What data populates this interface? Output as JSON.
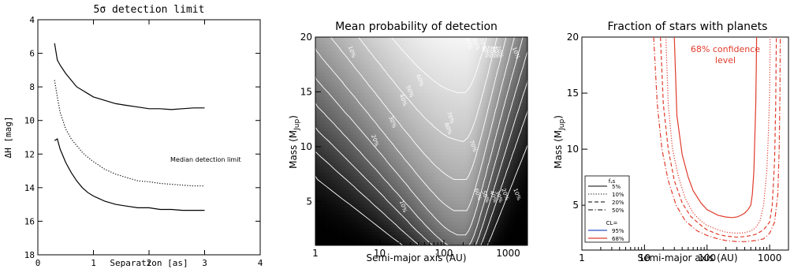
{
  "colors": {
    "red": "#e03c2c",
    "blue": "#3050c0",
    "black": "#000000"
  },
  "chart_data": [
    {
      "type": "line",
      "title": "5σ detection limit",
      "xlabel": "Separation [as]",
      "ylabel": "ΔH [mag]",
      "xlim": [
        0,
        4
      ],
      "ylim": [
        18,
        4
      ],
      "y_inverted": true,
      "xticks": [
        "0",
        "1",
        "2",
        "3",
        "4"
      ],
      "yticks": [
        "4",
        "6",
        "8",
        "10",
        "12",
        "14",
        "16",
        "18"
      ],
      "annotation": "Median detection limit",
      "series": [
        {
          "style": "solid",
          "x": [
            0.3,
            0.35,
            0.4,
            0.5,
            0.6,
            0.7,
            0.8,
            0.9,
            1.0,
            1.2,
            1.4,
            1.6,
            1.8,
            2.0,
            2.2,
            2.4,
            2.6,
            2.8,
            3.0
          ],
          "y": [
            5.4,
            6.4,
            6.7,
            7.2,
            7.6,
            8.0,
            8.2,
            8.4,
            8.6,
            8.8,
            9.0,
            9.1,
            9.2,
            9.3,
            9.3,
            9.35,
            9.3,
            9.25,
            9.25
          ]
        },
        {
          "style": "dotted",
          "x": [
            0.3,
            0.35,
            0.4,
            0.5,
            0.6,
            0.7,
            0.8,
            0.9,
            1.0,
            1.2,
            1.4,
            1.6,
            1.8,
            2.0,
            2.2,
            2.4,
            2.6,
            2.8,
            3.0
          ],
          "y": [
            7.6,
            8.6,
            9.5,
            10.5,
            11.1,
            11.5,
            11.9,
            12.2,
            12.45,
            12.9,
            13.2,
            13.4,
            13.6,
            13.65,
            13.75,
            13.8,
            13.85,
            13.9,
            13.9
          ]
        },
        {
          "style": "solid",
          "x": [
            0.3,
            0.35,
            0.4,
            0.5,
            0.6,
            0.7,
            0.8,
            0.9,
            1.0,
            1.2,
            1.4,
            1.6,
            1.8,
            2.0,
            2.2,
            2.4,
            2.6,
            2.8,
            3.0
          ],
          "y": [
            11.2,
            11.1,
            11.7,
            12.5,
            13.1,
            13.6,
            14.0,
            14.3,
            14.5,
            14.8,
            15.0,
            15.1,
            15.2,
            15.2,
            15.3,
            15.3,
            15.35,
            15.35,
            15.35
          ]
        }
      ]
    },
    {
      "type": "heatmap",
      "title": "Mean probability of detection",
      "xlabel": "Semi-major axis (AU)",
      "ylabel": "Mass (M",
      "ylabel_sub": "Jup",
      "ylabel_end": ")",
      "x_scale": "log",
      "xlim": [
        1,
        2000
      ],
      "ylim": [
        1,
        20
      ],
      "xticks": [
        "1",
        "10",
        "100",
        "1000"
      ],
      "yticks": [
        "5",
        "10",
        "15",
        "20"
      ],
      "contour_levels": [
        10,
        20,
        30,
        40,
        50,
        60,
        70,
        80,
        90
      ],
      "contour_labels": [
        {
          "text": "10%",
          "x": 3.5,
          "y": 18.6
        },
        {
          "text": "20%",
          "x": 8,
          "y": 10.5
        },
        {
          "text": "30%",
          "x": 15,
          "y": 12.2
        },
        {
          "text": "40%",
          "x": 22,
          "y": 14.2
        },
        {
          "text": "50%",
          "x": 28,
          "y": 15.0
        },
        {
          "text": "60%",
          "x": 40,
          "y": 16.0
        },
        {
          "text": "70%",
          "x": 120,
          "y": 12.6
        },
        {
          "text": "70%",
          "x": 270,
          "y": 10.0
        },
        {
          "text": "80%",
          "x": 110,
          "y": 11.6
        },
        {
          "text": "90%",
          "x": 230,
          "y": 19.4
        },
        {
          "text": "80%",
          "x": 300,
          "y": 19.3
        },
        {
          "text": "70%",
          "x": 380,
          "y": 19.3
        },
        {
          "text": "60%",
          "x": 420,
          "y": 18.6
        },
        {
          "text": "50%",
          "x": 480,
          "y": 18.6
        },
        {
          "text": "40%",
          "x": 560,
          "y": 18.6
        },
        {
          "text": "30%",
          "x": 620,
          "y": 18.6
        },
        {
          "text": "20%",
          "x": 700,
          "y": 18.6
        },
        {
          "text": "10%",
          "x": 1250,
          "y": 18.5
        },
        {
          "text": "10%",
          "x": 22,
          "y": 4.5
        },
        {
          "text": "60%",
          "x": 320,
          "y": 5.6
        },
        {
          "text": "50%",
          "x": 420,
          "y": 5.4
        },
        {
          "text": "40%",
          "x": 560,
          "y": 5.4
        },
        {
          "text": "30%",
          "x": 680,
          "y": 5.4
        },
        {
          "text": "20%",
          "x": 850,
          "y": 5.6
        },
        {
          "text": "10%",
          "x": 1300,
          "y": 5.6
        }
      ]
    },
    {
      "type": "line",
      "title": "Fraction of stars with planets",
      "xlabel": "Semi-major axis (AU)",
      "ylabel": "Mass (M",
      "ylabel_sub": "Jup",
      "ylabel_end": ")",
      "x_scale": "log",
      "xlim": [
        1,
        2000
      ],
      "ylim": [
        1,
        20
      ],
      "xticks": [
        "1",
        "10",
        "100",
        "1000"
      ],
      "yticks": [
        "5",
        "10",
        "15",
        "20"
      ],
      "annotation_line1": "68% confidence",
      "annotation_line2": "level",
      "legend": {
        "title_f": "f",
        "title_sub": "*",
        "title_s": "s",
        "entries": [
          "5%",
          "10%",
          "20%",
          "50%"
        ],
        "cl_title": "CL=",
        "cl_entries": [
          "95%",
          "68%"
        ]
      },
      "series": [
        {
          "name": "5%",
          "style": "solid",
          "x": [
            30,
            33,
            40,
            50,
            60,
            80,
            100,
            150,
            200,
            250,
            300,
            350,
            400,
            450,
            500,
            530,
            560,
            580,
            600,
            610,
            620
          ],
          "y": [
            20,
            13,
            9.5,
            7.5,
            6.3,
            5.2,
            4.6,
            4.1,
            3.95,
            3.9,
            3.95,
            4.1,
            4.3,
            4.6,
            5.0,
            6.0,
            8.0,
            11,
            14,
            17,
            20
          ]
        },
        {
          "name": "10%",
          "style": "dotted",
          "x": [
            22,
            24,
            28,
            35,
            45,
            60,
            80,
            100,
            150,
            200,
            300,
            400,
            500,
            600,
            700,
            800,
            900,
            950,
            1000,
            1020
          ],
          "y": [
            20,
            14,
            10,
            7.5,
            5.6,
            4.3,
            3.6,
            3.2,
            2.8,
            2.6,
            2.5,
            2.55,
            2.7,
            3.0,
            3.6,
            5.0,
            8.0,
            11,
            15,
            20
          ]
        },
        {
          "name": "20%",
          "style": "dashed",
          "x": [
            18,
            20,
            24,
            30,
            40,
            55,
            80,
            100,
            150,
            200,
            300,
            400,
            500,
            600,
            800,
            1000,
            1100,
            1200,
            1250,
            1280
          ],
          "y": [
            20,
            14,
            10,
            7.2,
            5.2,
            4.0,
            3.2,
            2.8,
            2.4,
            2.25,
            2.15,
            2.2,
            2.3,
            2.4,
            2.8,
            3.5,
            5.0,
            9.0,
            14,
            20
          ]
        },
        {
          "name": "50%",
          "style": "dashdot",
          "x": [
            14,
            16,
            19,
            24,
            32,
            45,
            70,
            100,
            150,
            200,
            300,
            400,
            600,
            800,
            1000,
            1200,
            1350,
            1420,
            1460,
            1480
          ],
          "y": [
            20,
            14,
            10,
            7.2,
            5.0,
            3.6,
            2.7,
            2.3,
            2.0,
            1.85,
            1.75,
            1.75,
            1.85,
            2.0,
            2.5,
            3.5,
            6.0,
            10,
            15,
            20
          ]
        }
      ]
    }
  ]
}
